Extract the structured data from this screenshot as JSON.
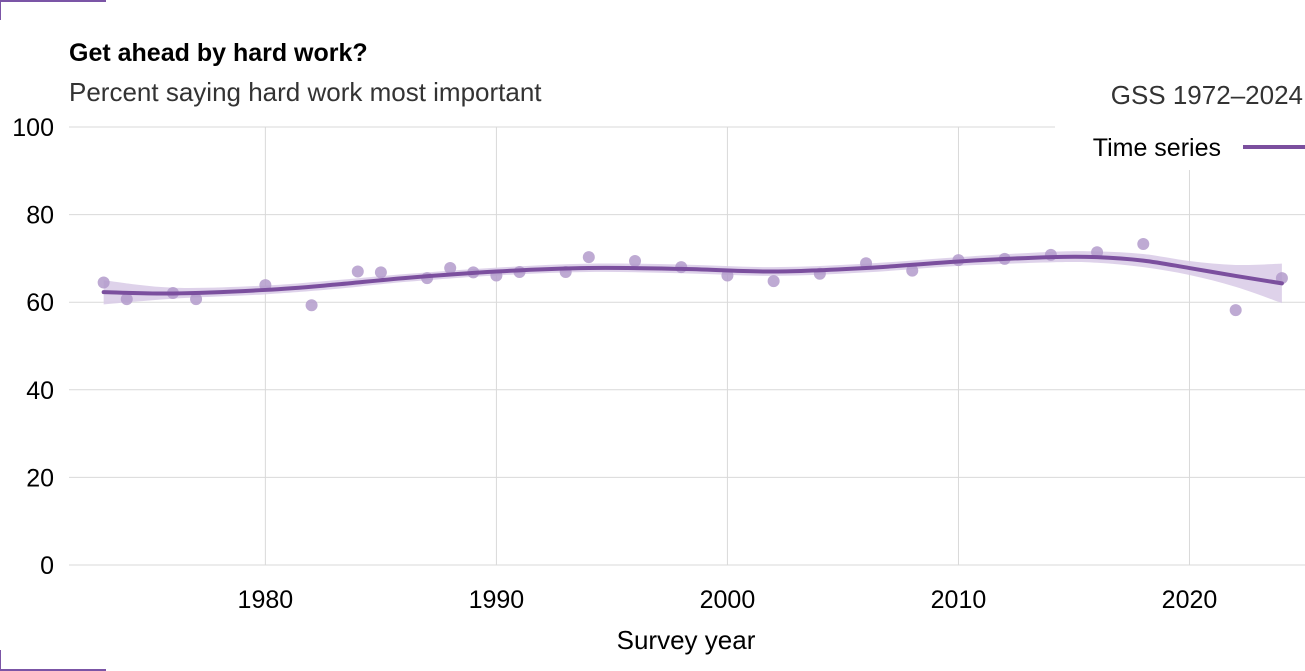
{
  "chart_data": {
    "type": "line",
    "title": "Get ahead by hard work?",
    "subtitle": "Percent saying hard work most important",
    "source": "GSS 1972–2024",
    "xlabel": "Survey year",
    "ylabel": "",
    "xlim": [
      1971.5,
      2025
    ],
    "ylim": [
      0,
      100
    ],
    "xticks": [
      1980,
      1990,
      2000,
      2010,
      2020
    ],
    "yticks": [
      0,
      20,
      40,
      60,
      80,
      100
    ],
    "grid": true,
    "legend": {
      "position": "top-right",
      "label": "Time series"
    },
    "color": "#7b4f9e",
    "point_color": "#b39bcb",
    "band_color": "#d8cae6",
    "points": {
      "x": [
        1973,
        1974,
        1976,
        1977,
        1980,
        1982,
        1984,
        1985,
        1987,
        1988,
        1989,
        1990,
        1991,
        1993,
        1994,
        1996,
        1998,
        2000,
        2002,
        2004,
        2006,
        2008,
        2010,
        2012,
        2014,
        2016,
        2018,
        2022,
        2024
      ],
      "y": [
        64.5,
        60.7,
        62.1,
        60.7,
        63.9,
        59.3,
        67.0,
        66.8,
        65.5,
        67.8,
        66.8,
        66.1,
        66.9,
        66.9,
        70.3,
        69.4,
        68.0,
        66.1,
        64.8,
        66.5,
        68.9,
        67.2,
        69.6,
        69.9,
        70.8,
        71.4,
        73.3,
        58.2,
        65.5
      ]
    },
    "trend": {
      "x": [
        1973,
        1976,
        1980,
        1983,
        1986,
        1990,
        1994,
        1998,
        2002,
        2006,
        2010,
        2014,
        2016,
        2018,
        2020,
        2022,
        2024
      ],
      "y": [
        62.3,
        62.0,
        62.8,
        64.0,
        65.5,
        67.0,
        67.8,
        67.6,
        67.0,
        67.8,
        69.3,
        70.3,
        70.3,
        69.5,
        67.8,
        66.0,
        64.3
      ]
    },
    "band": {
      "x": [
        1973,
        1976,
        1980,
        1983,
        1986,
        1990,
        1994,
        1998,
        2002,
        2006,
        2010,
        2014,
        2016,
        2018,
        2020,
        2022,
        2024
      ],
      "lower": [
        59.5,
        60.8,
        61.8,
        63.0,
        64.6,
        66.1,
        66.9,
        66.6,
        66.0,
        66.8,
        68.3,
        69.1,
        69.0,
        68.0,
        66.2,
        63.5,
        59.8
      ],
      "upper": [
        65.0,
        63.3,
        63.8,
        65.0,
        66.4,
        67.9,
        68.8,
        68.6,
        68.0,
        68.8,
        70.3,
        71.5,
        71.6,
        71.0,
        69.4,
        68.5,
        68.8
      ]
    }
  }
}
